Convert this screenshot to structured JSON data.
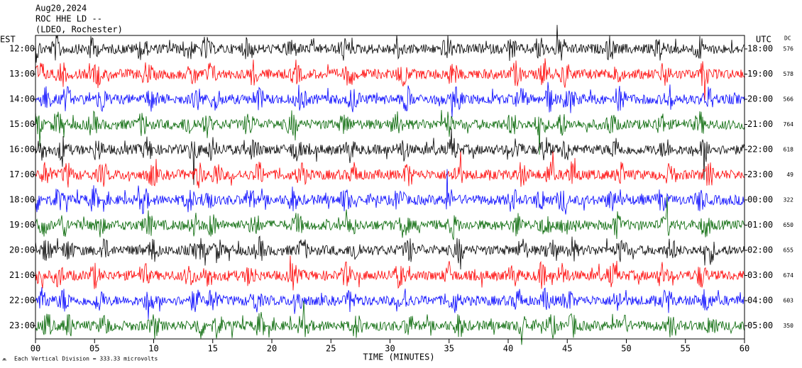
{
  "header": {
    "lines": [
      "Aug20,2024",
      "ROC HHE LD --",
      "(LDEO, Rochester)"
    ]
  },
  "left_axis": {
    "label": "EST",
    "ticks": [
      "12:00",
      "13:00",
      "14:00",
      "15:00",
      "16:00",
      "17:00",
      "18:00",
      "19:00",
      "20:00",
      "21:00",
      "22:00",
      "23:00"
    ]
  },
  "right_axis": {
    "label": "UTC",
    "ticks": [
      "18:00",
      "19:00",
      "20:00",
      "21:00",
      "22:00",
      "23:00",
      "00:00",
      "01:00",
      "02:00",
      "03:00",
      "04:00",
      "05:00"
    ]
  },
  "dc": {
    "label": "DC",
    "values": [
      576,
      578,
      566,
      764,
      618,
      49,
      322,
      650,
      655,
      674,
      603,
      350
    ]
  },
  "x_axis": {
    "label": "TIME (MINUTES)",
    "ticks": [
      "00",
      "05",
      "10",
      "15",
      "20",
      "25",
      "30",
      "35",
      "40",
      "45",
      "50",
      "55",
      "60"
    ]
  },
  "footnote": "Each Vertical Division = 333.33 microvolts",
  "trace_colors": [
    "#000000",
    "#ff0000",
    "#0000ff",
    "#006400"
  ]
}
